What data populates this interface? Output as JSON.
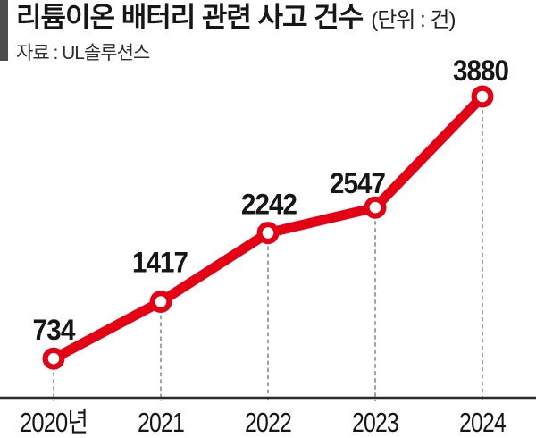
{
  "header": {
    "title": "리튬이온 배터리 관련 사고 건수",
    "unit_label": "(단위 : 건)",
    "source": "자료 : UL솔루션스"
  },
  "colors": {
    "line": "#e60013",
    "marker_fill": "#ffffff",
    "accent_bar": "#4d4d4d",
    "axis": "#2b2b2b",
    "dropline": "#8c8c8c",
    "text": "#161616"
  },
  "chart_data": {
    "type": "line",
    "title": "리튬이온 배터리 관련 사고 건수",
    "unit": "건",
    "source": "UL솔루션스",
    "categories": [
      "2020년",
      "2021",
      "2022",
      "2023",
      "2024"
    ],
    "values": [
      734,
      1417,
      2242,
      2547,
      3880
    ],
    "value_labels": [
      "734",
      "1417",
      "2242",
      "2547",
      "3880"
    ],
    "xlabel": "",
    "ylabel": "",
    "ylim": [
      0,
      4300
    ],
    "grid": false,
    "legend": false,
    "marker": "open-circle",
    "droplines": "dashed-vertical"
  }
}
